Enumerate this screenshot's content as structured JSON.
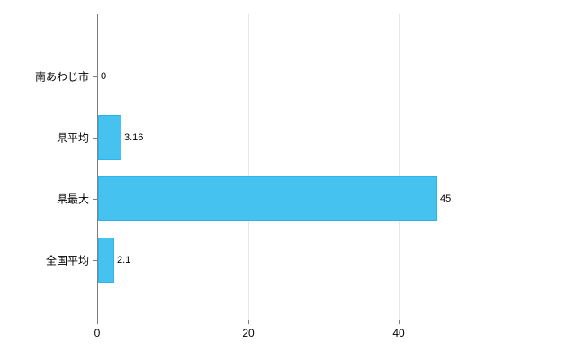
{
  "chart_data": {
    "type": "bar",
    "orientation": "horizontal",
    "title": "",
    "xlabel": "",
    "ylabel": "",
    "categories": [
      "南あわじ市",
      "県平均",
      "県最大",
      "全国平均"
    ],
    "values": [
      0,
      3.16,
      45,
      2.1
    ],
    "value_labels": [
      "0",
      "3.16",
      "45",
      "2.1"
    ],
    "xlim": [
      0,
      54
    ],
    "xticks": [
      0,
      20,
      40
    ],
    "xtick_labels": [
      "0",
      "20",
      "40"
    ],
    "grid": true,
    "legend": "none",
    "bar_color": "#45c2f0",
    "bar_border_color": "#2fb4e8",
    "axis_color": "#808080",
    "grid_color": "#e6e6e6",
    "background_color": "#ffffff"
  }
}
